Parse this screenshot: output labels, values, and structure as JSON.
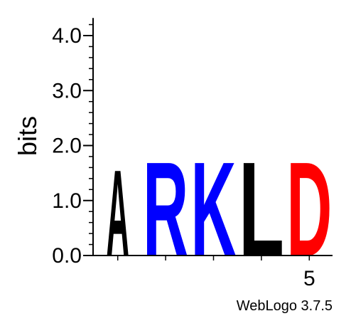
{
  "chart_data": {
    "type": "sequence-logo",
    "ylabel": "bits",
    "ylim": [
      0,
      4.32
    ],
    "y_ticks": [
      "0.0",
      "1.0",
      "2.0",
      "3.0",
      "4.0"
    ],
    "y_tick_values": [
      0,
      1,
      2,
      3,
      4
    ],
    "y_minor_step": 0.2,
    "x_positions": [
      1,
      2,
      3,
      4,
      5
    ],
    "x_tick_labels": [
      "",
      "",
      "",
      "",
      "5"
    ],
    "letters": [
      {
        "position": 1,
        "letter": "A",
        "height": 1.6,
        "color": "#000000"
      },
      {
        "position": 2,
        "letter": "R",
        "height": 1.75,
        "color": "#0000ff"
      },
      {
        "position": 3,
        "letter": "K",
        "height": 1.75,
        "color": "#0000ff"
      },
      {
        "position": 4,
        "letter": "L",
        "height": 1.75,
        "color": "#000000"
      },
      {
        "position": 5,
        "letter": "D",
        "height": 1.75,
        "color": "#ff0000"
      }
    ]
  },
  "footer": {
    "credit": "WebLogo 3.7.5"
  }
}
